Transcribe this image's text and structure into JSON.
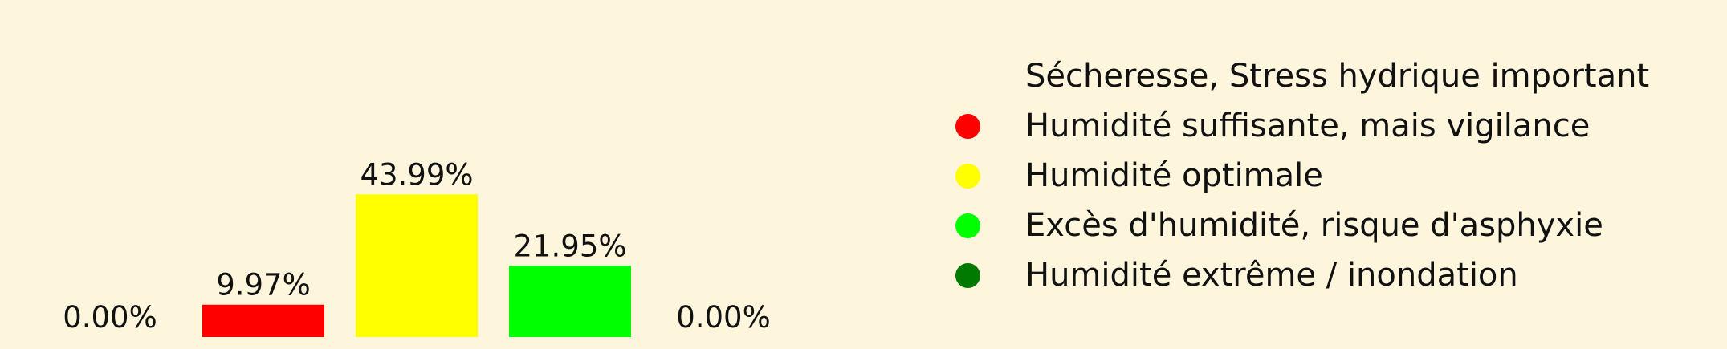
{
  "chart_data": {
    "type": "bar",
    "categories": [
      "Sécheresse, Stress hydrique important",
      "Humidité suffisante, mais vigilance",
      "Humidité optimale",
      "Excès d'humidité, risque d'asphyxie",
      "Humidité extrême / inondation"
    ],
    "values": [
      0.0,
      9.97,
      43.99,
      21.95,
      0.0
    ],
    "value_labels": [
      "0.00%",
      "9.97%",
      "43.99%",
      "21.95%",
      "0.00%"
    ],
    "colors": [
      "#fdf6dc",
      "#ff0000",
      "#ffff00",
      "#00ff00",
      "#007a00"
    ],
    "legend_placement": "right",
    "grid": false,
    "axes_visible": false
  },
  "legend": [
    {
      "label": "Sécheresse, Stress hydrique important",
      "color": "#fdf6dc"
    },
    {
      "label": "Humidité suffisante, mais vigilance",
      "color": "#ff0000"
    },
    {
      "label": "Humidité optimale",
      "color": "#ffff00"
    },
    {
      "label": "Excès d'humidité, risque d'asphyxie",
      "color": "#00ff00"
    },
    {
      "label": "Humidité extrême / inondation",
      "color": "#007a00"
    }
  ]
}
